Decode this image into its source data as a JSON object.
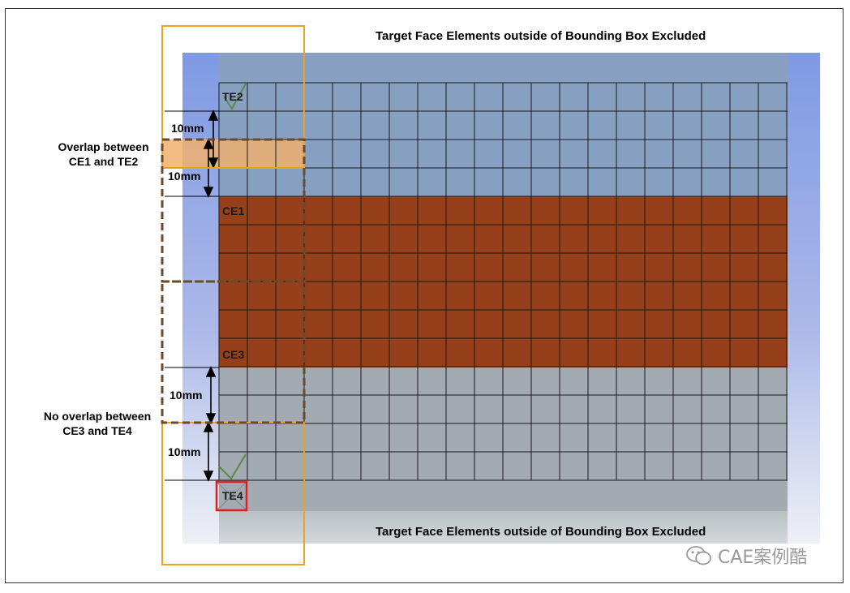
{
  "title_top": "Target Face Elements outside of Bounding Box Excluded",
  "title_bottom": "Target Face Elements outside of Bounding Box Excluded",
  "overlap_label": "Overlap between\nCE1 and TE2",
  "no_overlap_label": "No overlap between\nCE3 and TE4",
  "dimensions": [
    "10mm",
    "10mm",
    "10mm",
    "10mm"
  ],
  "element_labels": {
    "te2": "TE2",
    "ce1": "CE1",
    "ce3": "CE3",
    "te4": "TE4"
  },
  "watermark": "CAE案例酷",
  "colors": {
    "background_blue": "#8aa3e2",
    "target_face_upper": "#87a0c2",
    "contact_face": "#96401b",
    "target_face_lower": "#a1abb1",
    "bounding_box": "#f0a020",
    "contact_bounding_box": "#6a4a2a",
    "overlap_fill": "#f0b070",
    "excluded_element_outline": "#e02020"
  }
}
